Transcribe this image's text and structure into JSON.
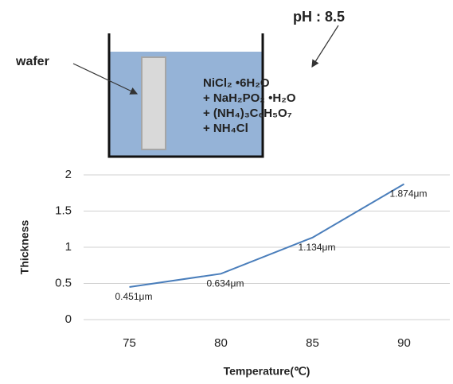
{
  "diagram": {
    "ph_label": "pH : 8.5",
    "wafer_label": "wafer",
    "solution": [
      "NiCl₂ •6H₂O",
      "+ NaH₂PO₂ •H₂O",
      "+ (NH₄)₃C₆H₅O₇",
      "+ NH₄Cl"
    ]
  },
  "chart_data": {
    "type": "line",
    "x_label": "Temperature(℃)",
    "y_label": "Thickness",
    "categories": [
      "75",
      "80",
      "85",
      "90"
    ],
    "series": [
      {
        "name": "Thickness",
        "color": "#4a7ebb",
        "values": [
          0.451,
          0.634,
          1.134,
          1.874
        ],
        "value_labels": [
          "0.451μm",
          "0.634μm",
          "1.134μm",
          "1.874μm"
        ]
      }
    ],
    "ylim": [
      0,
      2
    ],
    "yticks": [
      0,
      0.5,
      1,
      1.5,
      2
    ],
    "grid": true
  }
}
